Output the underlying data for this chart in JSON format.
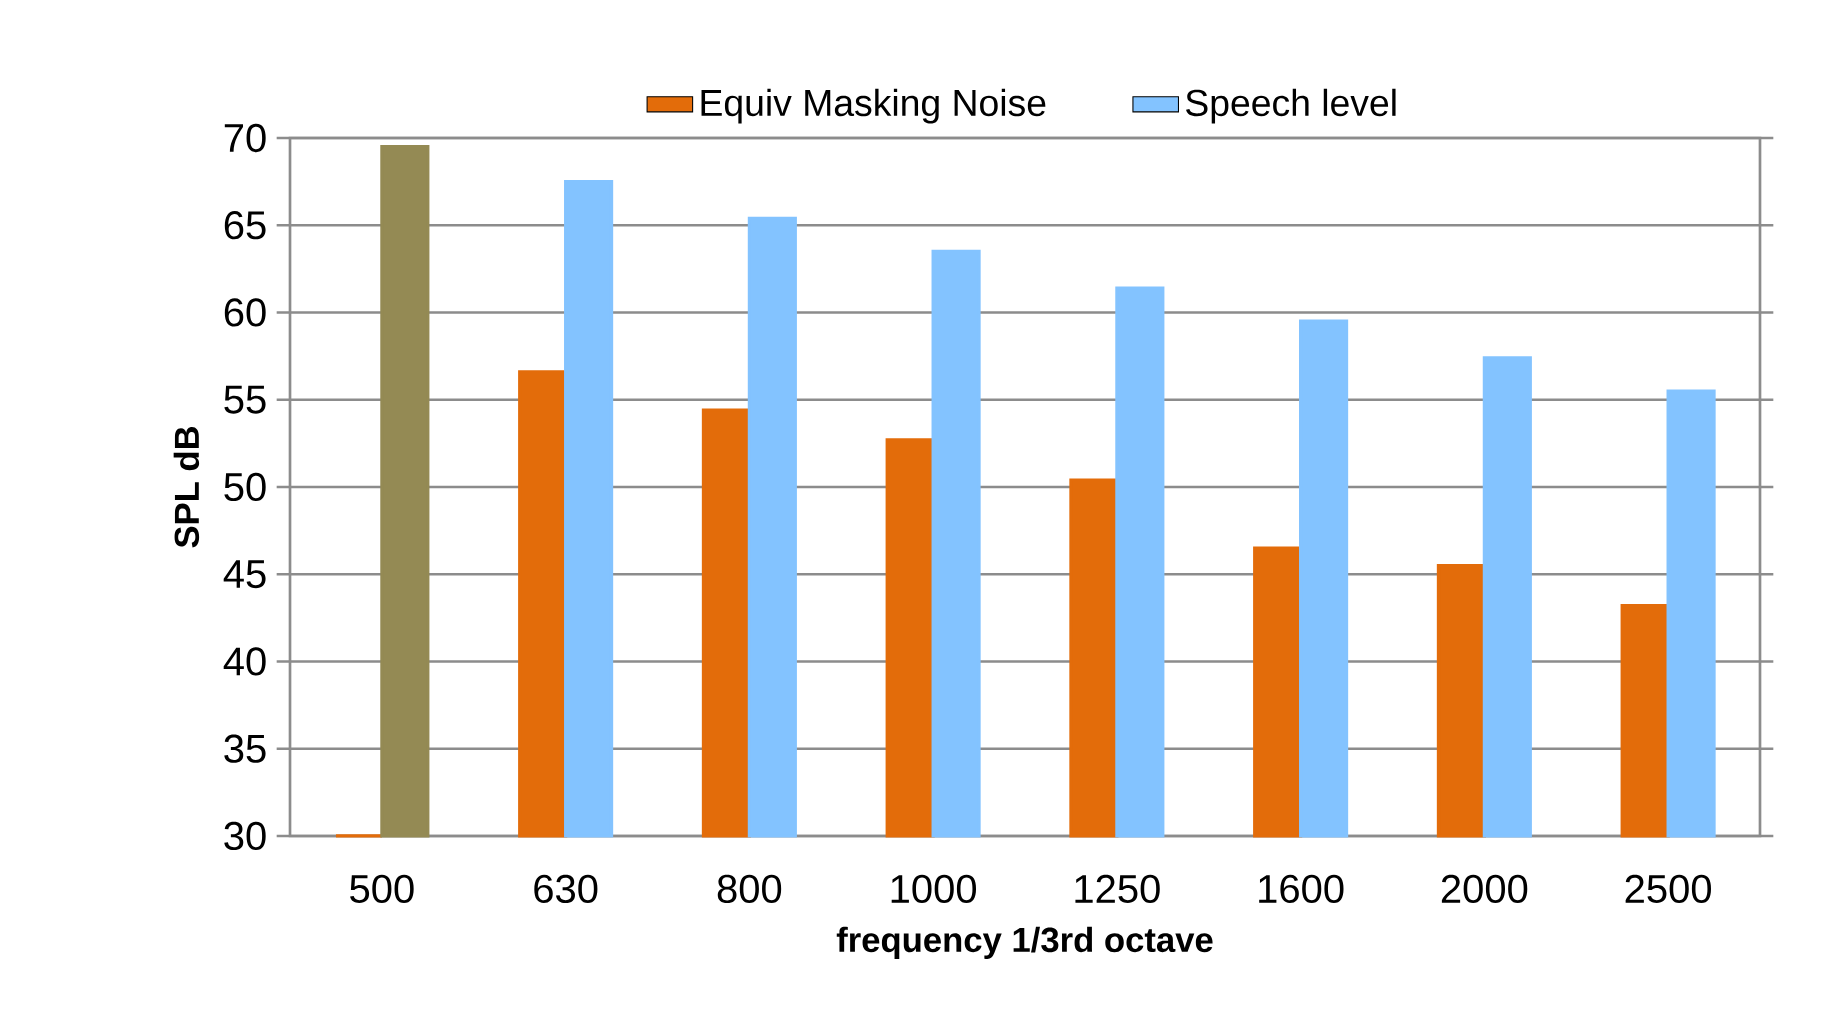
{
  "chart_data": {
    "type": "bar",
    "categories": [
      "500",
      "630",
      "800",
      "1000",
      "1250",
      "1600",
      "2000",
      "2500"
    ],
    "series": [
      {
        "name": "Equiv Masking Noise",
        "color": "#e36c0a",
        "values": [
          30,
          56.6,
          54.4,
          52.7,
          50.4,
          46.5,
          45.5,
          43.2
        ]
      },
      {
        "name": "Speech level",
        "color": "#83c3ff",
        "colors": [
          "#948a54",
          "#83c3ff",
          "#83c3ff",
          "#83c3ff",
          "#83c3ff",
          "#83c3ff",
          "#83c3ff",
          "#83c3ff"
        ],
        "values": [
          69.5,
          67.5,
          65.4,
          63.5,
          61.4,
          59.5,
          57.4,
          55.5
        ]
      }
    ],
    "xlabel": "frequency 1/3rd octave",
    "ylabel": "SPL dB",
    "ylim": [
      30,
      70
    ],
    "yticks": [
      30,
      35,
      40,
      45,
      50,
      55,
      60,
      65,
      70
    ],
    "grid": "y",
    "legend": "top"
  }
}
